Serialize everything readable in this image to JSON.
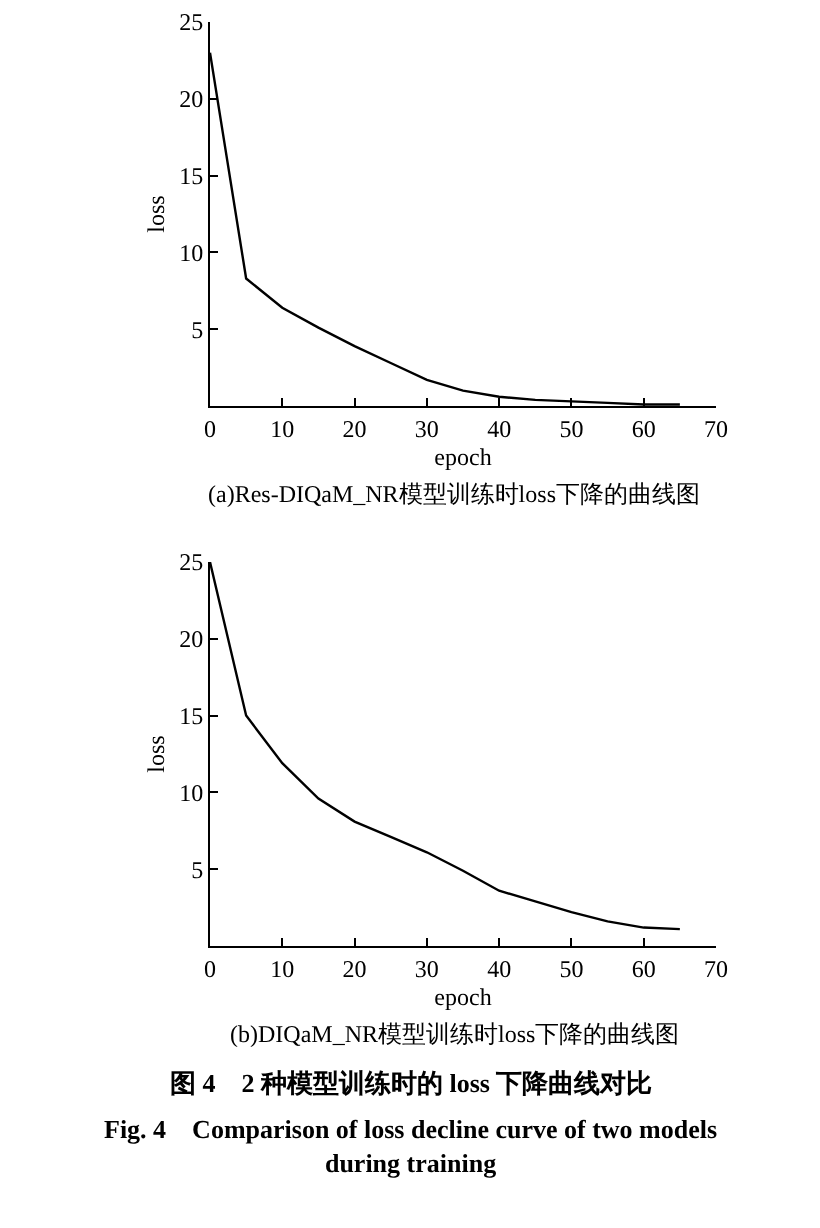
{
  "chart_data": [
    {
      "type": "line",
      "title": "(a)Res-DIQaM_NR模型训练时loss下降的曲线图",
      "xlabel": "epoch",
      "ylabel": "loss",
      "x": [
        0,
        5,
        10,
        15,
        20,
        25,
        30,
        35,
        40,
        45,
        50,
        55,
        60,
        65
      ],
      "series": [
        {
          "color": "#000000",
          "values": [
            23,
            8.3,
            6.4,
            5.1,
            3.9,
            2.8,
            1.7,
            1.0,
            0.6,
            0.4,
            0.3,
            0.2,
            0.1,
            0.1
          ]
        }
      ],
      "xlim": [
        0,
        70
      ],
      "ylim": [
        0,
        25
      ],
      "xticks": [
        0,
        10,
        20,
        30,
        40,
        50,
        60,
        70
      ],
      "yticks": [
        5,
        10,
        15,
        20,
        25
      ],
      "line_style": "solid"
    },
    {
      "type": "line",
      "title": "(b)DIQaM_NR模型训练时loss下降的曲线图",
      "xlabel": "epoch",
      "ylabel": "loss",
      "x": [
        0,
        5,
        10,
        15,
        20,
        25,
        30,
        35,
        40,
        45,
        50,
        55,
        60,
        65
      ],
      "series": [
        {
          "color": "#000000",
          "values": [
            25,
            15,
            11.9,
            9.6,
            8.1,
            7.1,
            6.1,
            4.9,
            3.6,
            2.9,
            2.2,
            1.6,
            1.2,
            1.1
          ]
        }
      ],
      "xlim": [
        0,
        70
      ],
      "ylim": [
        0,
        25
      ],
      "xticks": [
        0,
        10,
        20,
        30,
        40,
        50,
        60,
        70
      ],
      "yticks": [
        5,
        10,
        15,
        20,
        25
      ],
      "line_style": "solid",
      "annotations": [
        "图 4　2 种模型训练时的 loss 下降曲线对比",
        "Fig. 4　Comparison of loss decline curve of two models during training"
      ]
    }
  ]
}
